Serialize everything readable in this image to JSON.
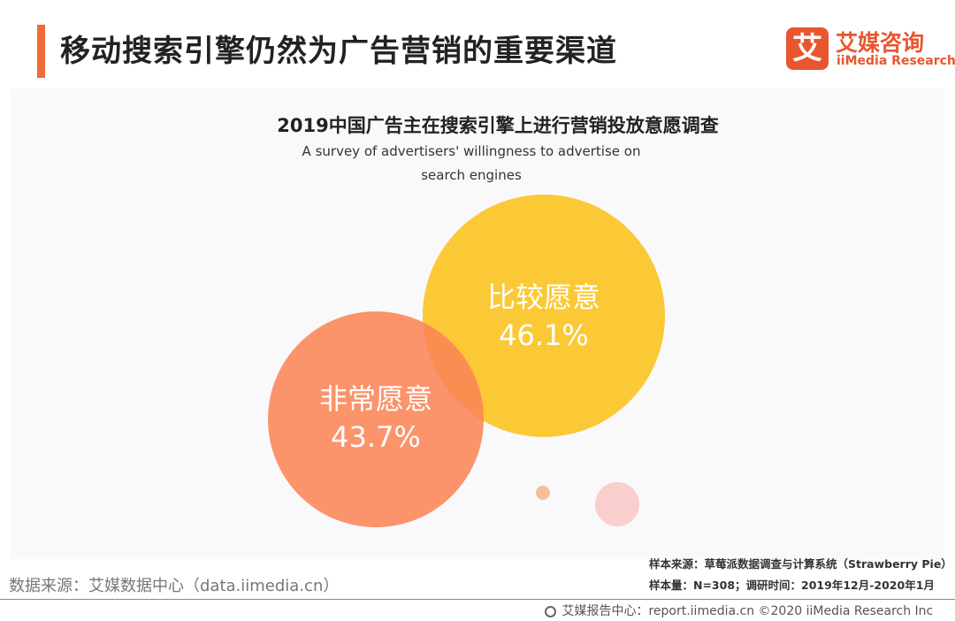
{
  "header": {
    "title": "移动搜索引擎仍然为广告营销的重要渠道",
    "accent_color": "#f26b3a"
  },
  "logo": {
    "glyph": "艾",
    "name_cn": "艾媒咨询",
    "name_en": "iiMedia Research",
    "color": "#e8562f"
  },
  "chart_data": {
    "type": "bubble",
    "title": "2019中国广告主在搜索引擎上进行营销投放意愿调查",
    "subtitle": "A survey of advertisers' willingness to advertise on search engines",
    "unit": "%",
    "series": [
      {
        "label": "比较愿意",
        "value": 46.1,
        "value_text": "46.1%",
        "color": "#fbc52b"
      },
      {
        "label": "非常愿意",
        "value": 43.7,
        "value_text": "43.7%",
        "color": "#fa8456"
      },
      {
        "label": "",
        "value": null,
        "value_text": "",
        "color": "#f9c9c6"
      },
      {
        "label": "",
        "value": null,
        "value_text": "",
        "color": "#f5b88e"
      }
    ],
    "legend": "none",
    "grid": false
  },
  "notes": {
    "sample_source": "样本来源：草莓派数据调查与计算系统（Strawberry Pie）",
    "sample_size": "样本量：N=308；调研时间：2019年12月-2020年1月"
  },
  "data_source": "数据来源：艾媒数据中心（data.iimedia.cn）",
  "footer": {
    "icon": "globe-icon",
    "text": "艾媒报告中心：report.iimedia.cn  ©2020  iiMedia Research  Inc"
  }
}
